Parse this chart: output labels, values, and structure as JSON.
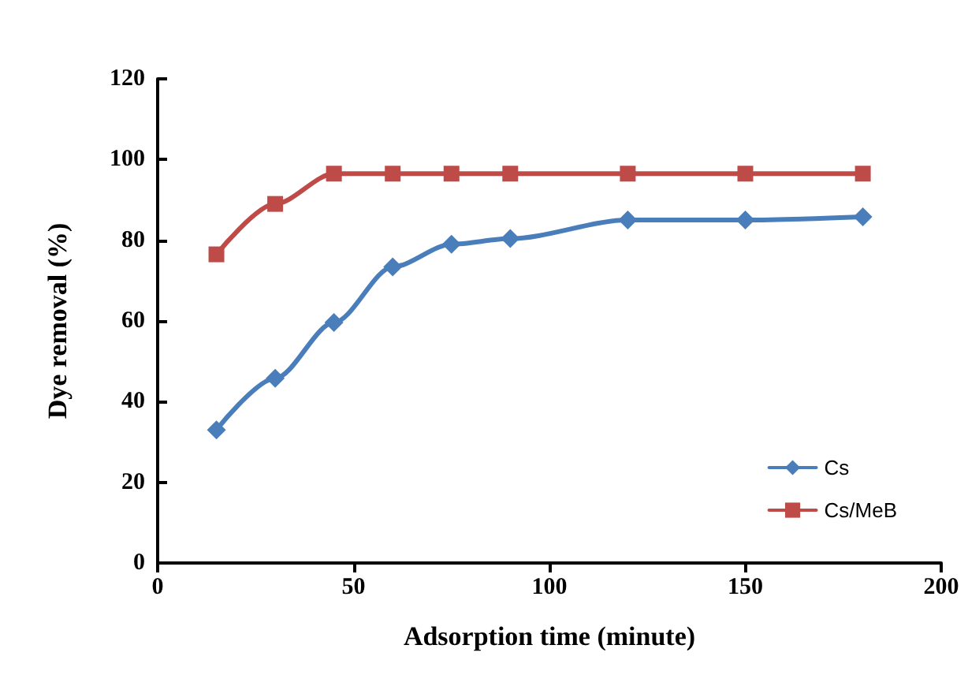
{
  "chart_data": {
    "type": "line",
    "xlabel": "Adsorption time (minute)",
    "ylabel": "Dye removal (%)",
    "x": [
      15,
      30,
      45,
      60,
      75,
      90,
      120,
      150,
      180
    ],
    "series": [
      {
        "name": "Cs",
        "color": "#4a7ebb",
        "marker": "diamond",
        "values": [
          33,
          45.8,
          59.6,
          73.4,
          79,
          80.4,
          85,
          85,
          85.8
        ]
      },
      {
        "name": "Cs/MeB",
        "color": "#be4b48",
        "marker": "square",
        "values": [
          76.5,
          89,
          96.5,
          96.5,
          96.5,
          96.5,
          96.5,
          96.5,
          96.5
        ]
      }
    ],
    "xlim": [
      0,
      200
    ],
    "xticks": [
      0,
      50,
      100,
      150,
      200
    ],
    "ylim": [
      0,
      120
    ],
    "yticks": [
      0,
      20,
      40,
      60,
      80,
      100,
      120
    ],
    "grid": false,
    "legend": "bottom right",
    "line_style": "solid"
  }
}
